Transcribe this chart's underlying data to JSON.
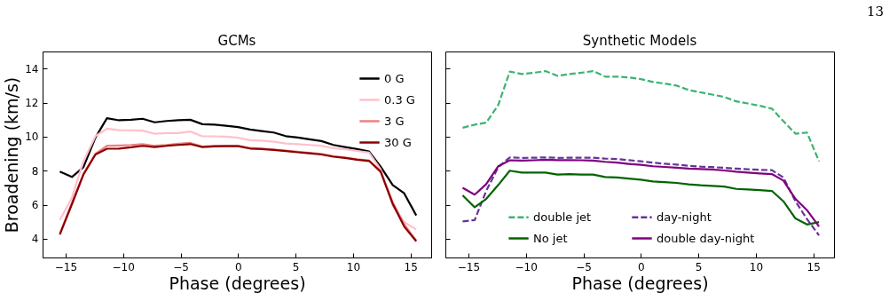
{
  "chart_data": [
    {
      "type": "line",
      "title": "GCMs",
      "xlabel": "Phase (degrees)",
      "ylabel": "Broadening (km/s)",
      "x": [
        -15.5,
        -14.45,
        -13.45,
        -12.4,
        -11.4,
        -10.35,
        -9.3,
        -8.3,
        -7.25,
        -6.2,
        -5.2,
        -4.15,
        -3.1,
        -2.05,
        -1.05,
        0,
        1.05,
        2.05,
        3.1,
        4.15,
        5.2,
        6.2,
        7.25,
        8.3,
        9.3,
        10.35,
        11.4,
        12.4,
        13.45,
        14.45,
        15.5
      ],
      "series": [
        {
          "name": "0 G",
          "color": "#000000",
          "line_style": "solid",
          "values": [
            7.94,
            7.63,
            8.2,
            9.95,
            11.08,
            10.96,
            10.99,
            11.05,
            10.84,
            10.92,
            10.96,
            10.99,
            10.73,
            10.7,
            10.64,
            10.56,
            10.42,
            10.33,
            10.24,
            10.03,
            9.95,
            9.84,
            9.74,
            9.51,
            9.39,
            9.27,
            9.13,
            8.24,
            7.16,
            6.67,
            5.37
          ]
        },
        {
          "name": "0.3 G",
          "color": "#ffc0cb",
          "line_style": "solid",
          "values": [
            5.1,
            6.41,
            8.55,
            10.03,
            10.47,
            10.38,
            10.37,
            10.35,
            10.17,
            10.21,
            10.21,
            10.3,
            10.02,
            10.02,
            10.0,
            9.93,
            9.79,
            9.76,
            9.7,
            9.6,
            9.56,
            9.51,
            9.46,
            9.32,
            9.25,
            9.16,
            9.06,
            8.08,
            5.94,
            4.98,
            4.55
          ]
        },
        {
          "name": "3 G",
          "color": "#f08080",
          "line_style": "solid",
          "values": [
            4.3,
            6.1,
            7.8,
            9.0,
            9.46,
            9.48,
            9.51,
            9.56,
            9.46,
            9.51,
            9.58,
            9.63,
            9.42,
            9.46,
            9.47,
            9.47,
            9.33,
            9.3,
            9.25,
            9.18,
            9.11,
            9.05,
            8.98,
            8.85,
            8.78,
            8.67,
            8.6,
            7.98,
            6.15,
            4.85,
            3.9
          ]
        },
        {
          "name": "30 G",
          "color": "#8b0000",
          "line_style": "solid",
          "values": [
            4.25,
            6.03,
            7.77,
            8.95,
            9.29,
            9.3,
            9.37,
            9.46,
            9.39,
            9.46,
            9.51,
            9.56,
            9.39,
            9.43,
            9.44,
            9.44,
            9.3,
            9.27,
            9.22,
            9.15,
            9.08,
            9.02,
            8.95,
            8.82,
            8.75,
            8.64,
            8.57,
            7.94,
            6.06,
            4.72,
            3.85
          ]
        }
      ],
      "xlim": [
        -17,
        16.8
      ],
      "ylim": [
        2.9,
        15
      ],
      "xticks": [
        -15,
        -10,
        -5,
        0,
        5,
        10,
        15
      ],
      "yticks": [
        4,
        6,
        8,
        10,
        12,
        14
      ],
      "grid": false,
      "legend": "top right"
    },
    {
      "type": "line",
      "title": "Synthetic Models",
      "xlabel": "Phase (degrees)",
      "annotations": [
        "13"
      ],
      "x": [
        -15.5,
        -14.45,
        -13.45,
        -12.4,
        -11.4,
        -10.35,
        -9.3,
        -8.3,
        -7.25,
        -6.2,
        -5.2,
        -4.15,
        -3.1,
        -2.05,
        -1.05,
        0,
        1.05,
        2.05,
        3.1,
        4.15,
        5.2,
        6.2,
        7.25,
        8.3,
        9.3,
        10.35,
        11.4,
        12.4,
        13.45,
        14.45,
        15.5
      ],
      "series": [
        {
          "name": "double jet",
          "color": "#3cb371",
          "line_style": "dashed",
          "values": [
            10.52,
            10.7,
            10.82,
            11.86,
            13.82,
            13.68,
            13.75,
            13.85,
            13.57,
            13.68,
            13.75,
            13.85,
            13.52,
            13.52,
            13.48,
            13.38,
            13.21,
            13.12,
            13.0,
            12.74,
            12.6,
            12.47,
            12.33,
            12.07,
            11.95,
            11.81,
            11.64,
            10.91,
            10.17,
            10.24,
            8.55
          ]
        },
        {
          "name": "day-night",
          "color": "#663399",
          "line_style": "dashed",
          "values": [
            5.02,
            5.1,
            6.81,
            8.21,
            8.78,
            8.75,
            8.76,
            8.78,
            8.75,
            8.76,
            8.76,
            8.76,
            8.71,
            8.68,
            8.62,
            8.55,
            8.47,
            8.41,
            8.36,
            8.29,
            8.24,
            8.21,
            8.17,
            8.12,
            8.08,
            8.05,
            8.03,
            7.6,
            6.2,
            5.16,
            4.2
          ]
        },
        {
          "name": "No jet",
          "color": "#006400",
          "line_style": "solid",
          "values": [
            6.55,
            5.85,
            6.34,
            7.16,
            8.0,
            7.89,
            7.89,
            7.89,
            7.77,
            7.8,
            7.77,
            7.77,
            7.63,
            7.6,
            7.54,
            7.47,
            7.37,
            7.33,
            7.28,
            7.2,
            7.14,
            7.11,
            7.07,
            6.93,
            6.9,
            6.86,
            6.81,
            6.2,
            5.19,
            4.84,
            4.98
          ]
        },
        {
          "name": "double day-night",
          "color": "#800080",
          "line_style": "solid",
          "values": [
            6.99,
            6.59,
            7.21,
            8.26,
            8.61,
            8.59,
            8.61,
            8.64,
            8.62,
            8.62,
            8.61,
            8.59,
            8.52,
            8.47,
            8.4,
            8.34,
            8.26,
            8.22,
            8.17,
            8.12,
            8.1,
            8.07,
            8.01,
            7.94,
            7.89,
            7.84,
            7.8,
            7.42,
            6.34,
            5.68,
            4.72
          ]
        }
      ],
      "xlim": [
        -17,
        16.8
      ],
      "ylim": [
        2.9,
        15
      ],
      "xticks": [
        -15,
        -10,
        -5,
        0,
        5,
        10,
        15
      ],
      "yticks": [
        4,
        6,
        8,
        10,
        12,
        14
      ],
      "grid": false,
      "legend": "bottom",
      "tick_labels": "x"
    }
  ]
}
